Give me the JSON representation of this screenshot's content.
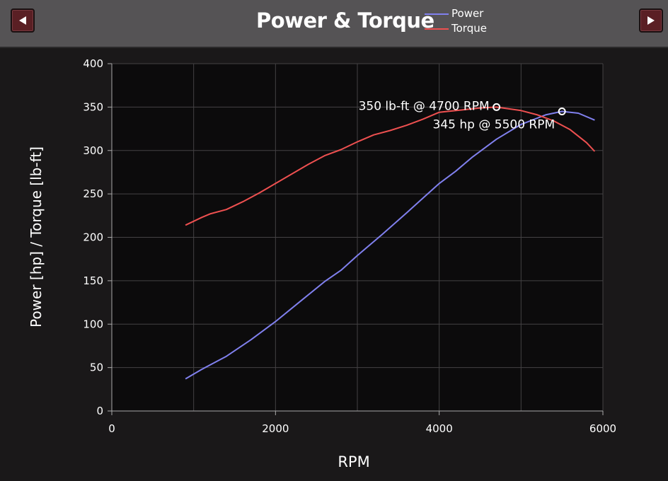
{
  "header": {
    "title": "Power & Torque",
    "prev_icon": "left-triangle-icon",
    "next_icon": "right-triangle-icon",
    "button_color": "#5a1f24"
  },
  "chart_data": {
    "type": "line",
    "title": "Power & Torque",
    "xlabel": "RPM",
    "ylabel": "Power [hp] / Torque [lb-ft]",
    "xlim": [
      0,
      6000
    ],
    "ylim": [
      0,
      400
    ],
    "xticks": [
      0,
      2000,
      4000,
      6000
    ],
    "yticks": [
      0,
      50,
      100,
      150,
      200,
      250,
      300,
      350,
      400
    ],
    "grid": true,
    "legend_position": "top",
    "series": [
      {
        "name": "Power",
        "color": "#8080ee",
        "x": [
          900,
          1100,
          1400,
          1700,
          2000,
          2300,
          2600,
          2800,
          3000,
          3300,
          3600,
          3800,
          4000,
          4200,
          4400,
          4700,
          5000,
          5300,
          5500,
          5700,
          5900
        ],
        "y": [
          37,
          48,
          63,
          82,
          103,
          126,
          149,
          162,
          179,
          203,
          228,
          245,
          262,
          276,
          292,
          313,
          330,
          341,
          345,
          343,
          335
        ]
      },
      {
        "name": "Torque",
        "color": "#ee5050",
        "x": [
          900,
          1100,
          1200,
          1400,
          1600,
          1800,
          2000,
          2200,
          2400,
          2600,
          2800,
          3000,
          3200,
          3400,
          3600,
          3800,
          4000,
          4100,
          4300,
          4500,
          4700,
          5000,
          5200,
          5400,
          5600,
          5800,
          5900
        ],
        "y": [
          214,
          223,
          227,
          232,
          241,
          251,
          262,
          273,
          284,
          294,
          301,
          310,
          318,
          323,
          329,
          336,
          344,
          345,
          347,
          349,
          350,
          346,
          341,
          334,
          324,
          309,
          299
        ]
      }
    ],
    "annotations": [
      {
        "text": "350 lb-ft @ 4700 RPM",
        "x": 4700,
        "y": 350,
        "series": "Torque"
      },
      {
        "text": "345 hp @ 5500 RPM",
        "x": 5500,
        "y": 345,
        "series": "Power"
      }
    ]
  }
}
